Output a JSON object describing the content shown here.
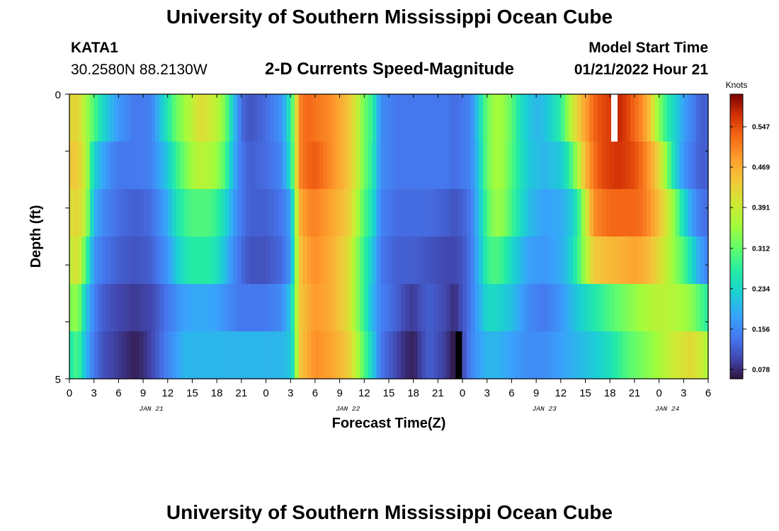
{
  "page": {
    "title": "University of Southern Mississippi Ocean Cube",
    "station": "KATA1",
    "coords": "30.2580N  88.2130W",
    "subtitle": "2-D Currents Speed-Magnitude",
    "start_label": "Model Start Time",
    "start_value": "01/21/2022 Hour 21",
    "bottom_title": "University of Southern Mississippi Ocean Cube"
  },
  "chart_data": {
    "type": "heatmap",
    "title": "2-D Currents Speed-Magnitude",
    "xlabel": "Forecast Time(Z)",
    "ylabel": "Depth (ft)",
    "x_tick_labels": [
      "0",
      "3",
      "6",
      "9",
      "12",
      "15",
      "18",
      "21",
      "0",
      "3",
      "6",
      "9",
      "12",
      "15",
      "18",
      "21",
      "0",
      "3",
      "6",
      "9",
      "12",
      "15",
      "18",
      "21",
      "0",
      "3",
      "6"
    ],
    "date_labels": [
      {
        "label": "JAN 21",
        "hour": 10
      },
      {
        "label": "JAN 22",
        "hour": 34
      },
      {
        "label": "JAN 23",
        "hour": 58
      },
      {
        "label": "JAN 24",
        "hour": 73
      }
    ],
    "xlim_hours": [
      0,
      78
    ],
    "y_tick_labels": [
      "0",
      "5"
    ],
    "ylim_ft": [
      0,
      5
    ],
    "depth_levels": 6,
    "colorbar": {
      "title": "Knots",
      "ticks": [
        "0.547",
        "0.469",
        "0.391",
        "0.312",
        "0.234",
        "0.156",
        "0.078"
      ],
      "tick_values": [
        0.547,
        0.469,
        0.391,
        0.312,
        0.234,
        0.156,
        0.078
      ],
      "range": [
        0.06,
        0.61
      ]
    },
    "missing_marks": [
      {
        "hour": 66.5,
        "depth_index": 0,
        "kind": "no-data"
      },
      {
        "hour": 47.5,
        "depth_index": 5,
        "kind": "below-scale"
      }
    ],
    "profiles": [
      {
        "name": "depth-0",
        "hours": [
          0,
          1,
          2,
          3,
          4,
          6,
          8,
          10,
          12,
          13,
          15,
          16,
          17,
          18,
          19,
          20,
          21,
          22,
          24,
          25,
          26,
          27,
          27.5,
          28,
          29,
          30,
          32,
          34,
          35,
          36,
          37,
          38,
          40,
          42,
          44,
          46,
          47,
          48,
          49,
          50,
          51,
          52,
          53,
          54,
          55,
          56,
          57,
          58,
          60,
          61,
          62,
          63,
          64,
          65,
          66,
          67,
          68,
          69,
          70,
          71,
          71.5,
          72,
          73,
          74,
          75,
          76,
          77,
          78
        ],
        "values": [
          0.42,
          0.43,
          0.36,
          0.3,
          0.24,
          0.17,
          0.14,
          0.15,
          0.26,
          0.32,
          0.38,
          0.42,
          0.4,
          0.38,
          0.33,
          0.22,
          0.13,
          0.11,
          0.13,
          0.15,
          0.17,
          0.27,
          0.35,
          0.5,
          0.53,
          0.52,
          0.5,
          0.45,
          0.4,
          0.32,
          0.28,
          0.16,
          0.14,
          0.14,
          0.14,
          0.14,
          0.13,
          0.14,
          0.15,
          0.23,
          0.32,
          0.36,
          0.35,
          0.31,
          0.25,
          0.22,
          0.2,
          0.21,
          0.27,
          0.36,
          0.43,
          0.48,
          0.53,
          0.55,
          0.56,
          0.58,
          0.56,
          0.53,
          0.5,
          0.44,
          0.38,
          0.34,
          0.27,
          0.23,
          0.18,
          0.15,
          0.12,
          0.12
        ]
      },
      {
        "name": "depth-1",
        "hours": [
          0,
          1,
          2,
          3,
          4,
          5,
          6,
          8,
          10,
          12,
          13,
          15,
          16,
          17,
          18,
          19,
          20,
          21,
          22,
          24,
          25,
          26,
          27,
          27.5,
          28,
          29,
          30,
          32,
          34,
          35,
          36,
          37,
          38,
          40,
          42,
          44,
          46,
          47,
          48,
          49,
          50,
          51,
          52,
          53,
          54,
          56,
          58,
          60,
          61,
          62,
          63,
          64,
          65,
          66,
          67,
          68,
          69,
          70,
          71,
          72,
          73,
          74,
          75,
          76,
          77,
          78
        ],
        "values": [
          0.44,
          0.44,
          0.38,
          0.23,
          0.19,
          0.16,
          0.14,
          0.14,
          0.15,
          0.22,
          0.28,
          0.36,
          0.38,
          0.37,
          0.35,
          0.3,
          0.2,
          0.14,
          0.12,
          0.13,
          0.14,
          0.16,
          0.25,
          0.35,
          0.5,
          0.53,
          0.54,
          0.5,
          0.45,
          0.4,
          0.32,
          0.27,
          0.16,
          0.14,
          0.14,
          0.14,
          0.14,
          0.13,
          0.14,
          0.15,
          0.22,
          0.32,
          0.36,
          0.35,
          0.3,
          0.22,
          0.2,
          0.22,
          0.27,
          0.36,
          0.46,
          0.52,
          0.55,
          0.56,
          0.57,
          0.56,
          0.55,
          0.52,
          0.48,
          0.42,
          0.33,
          0.23,
          0.17,
          0.14,
          0.12,
          0.12
        ]
      },
      {
        "name": "depth-2",
        "hours": [
          0,
          1,
          2,
          3,
          4,
          6,
          8,
          10,
          12,
          13,
          14,
          15,
          17,
          18,
          19,
          20,
          21,
          22,
          24,
          25,
          26,
          27,
          27.5,
          28,
          29,
          30,
          32,
          34,
          35,
          36,
          37,
          38,
          40,
          42,
          44,
          46,
          47,
          48,
          49,
          50,
          51,
          52,
          53,
          54,
          56,
          58,
          60,
          61,
          62,
          63,
          64,
          66,
          68,
          69,
          70,
          71,
          72,
          73,
          74,
          75,
          76,
          77,
          78
        ],
        "values": [
          0.41,
          0.43,
          0.37,
          0.2,
          0.16,
          0.13,
          0.12,
          0.13,
          0.19,
          0.25,
          0.28,
          0.3,
          0.3,
          0.28,
          0.24,
          0.18,
          0.14,
          0.12,
          0.12,
          0.13,
          0.14,
          0.18,
          0.3,
          0.46,
          0.5,
          0.51,
          0.48,
          0.44,
          0.38,
          0.3,
          0.25,
          0.15,
          0.13,
          0.13,
          0.13,
          0.12,
          0.11,
          0.12,
          0.14,
          0.21,
          0.3,
          0.35,
          0.34,
          0.29,
          0.21,
          0.18,
          0.19,
          0.21,
          0.26,
          0.38,
          0.5,
          0.53,
          0.53,
          0.53,
          0.52,
          0.49,
          0.45,
          0.4,
          0.33,
          0.24,
          0.18,
          0.14,
          0.13
        ]
      },
      {
        "name": "depth-3",
        "hours": [
          0,
          1,
          2,
          3,
          4,
          6,
          8,
          10,
          12,
          13,
          14,
          15,
          17,
          18,
          19,
          20,
          21,
          22,
          24,
          25,
          26,
          27,
          27.5,
          28,
          29,
          30,
          32,
          34,
          35,
          36,
          37,
          38,
          40,
          42,
          44,
          46,
          47,
          48,
          49,
          50,
          51,
          52,
          53,
          54,
          56,
          58,
          60,
          61,
          62,
          63,
          64,
          66,
          68,
          69,
          70,
          71,
          72,
          73,
          74,
          75,
          76,
          77,
          78
        ],
        "values": [
          0.38,
          0.42,
          0.3,
          0.17,
          0.14,
          0.12,
          0.11,
          0.12,
          0.17,
          0.22,
          0.25,
          0.27,
          0.27,
          0.25,
          0.21,
          0.16,
          0.13,
          0.11,
          0.11,
          0.12,
          0.13,
          0.17,
          0.28,
          0.44,
          0.48,
          0.5,
          0.47,
          0.42,
          0.35,
          0.28,
          0.22,
          0.14,
          0.12,
          0.12,
          0.11,
          0.1,
          0.1,
          0.11,
          0.14,
          0.2,
          0.28,
          0.3,
          0.28,
          0.24,
          0.18,
          0.17,
          0.19,
          0.22,
          0.28,
          0.36,
          0.44,
          0.46,
          0.47,
          0.48,
          0.47,
          0.45,
          0.42,
          0.38,
          0.34,
          0.3,
          0.24,
          0.18,
          0.15
        ]
      },
      {
        "name": "depth-4",
        "hours": [
          0,
          1,
          2,
          3,
          4,
          6,
          8,
          10,
          12,
          14,
          16,
          18,
          20,
          21,
          22,
          24,
          26,
          27,
          27.5,
          28,
          30,
          32,
          34,
          35,
          36,
          37,
          38,
          40,
          41,
          42,
          43,
          44,
          46,
          47,
          48,
          49,
          50,
          51,
          52,
          54,
          56,
          58,
          60,
          62,
          64,
          66,
          68,
          70,
          72,
          74,
          76,
          77,
          78
        ],
        "values": [
          0.33,
          0.35,
          0.22,
          0.15,
          0.12,
          0.1,
          0.09,
          0.1,
          0.14,
          0.18,
          0.19,
          0.18,
          0.15,
          0.14,
          0.14,
          0.14,
          0.16,
          0.22,
          0.3,
          0.44,
          0.49,
          0.47,
          0.42,
          0.35,
          0.28,
          0.2,
          0.15,
          0.12,
          0.1,
          0.09,
          0.11,
          0.12,
          0.1,
          0.08,
          0.11,
          0.14,
          0.19,
          0.24,
          0.24,
          0.21,
          0.16,
          0.14,
          0.17,
          0.22,
          0.26,
          0.3,
          0.33,
          0.36,
          0.38,
          0.37,
          0.34,
          0.3,
          0.27
        ]
      },
      {
        "name": "depth-5",
        "hours": [
          0,
          1,
          2,
          3,
          4,
          6,
          7,
          8,
          9,
          10,
          12,
          14,
          16,
          18,
          20,
          22,
          24,
          26,
          27,
          27.5,
          28,
          30,
          32,
          34,
          35,
          36,
          37,
          38,
          40,
          41,
          42,
          43,
          44,
          46,
          47,
          48,
          49,
          50,
          51,
          52,
          54,
          56,
          58,
          60,
          62,
          64,
          66,
          68,
          70,
          72,
          74,
          76,
          77,
          78
        ],
        "values": [
          0.26,
          0.3,
          0.2,
          0.14,
          0.11,
          0.09,
          0.08,
          0.07,
          0.08,
          0.1,
          0.15,
          0.2,
          0.2,
          0.2,
          0.2,
          0.2,
          0.2,
          0.2,
          0.22,
          0.28,
          0.44,
          0.5,
          0.48,
          0.44,
          0.38,
          0.3,
          0.23,
          0.14,
          0.1,
          0.08,
          0.07,
          0.1,
          0.12,
          0.09,
          0.06,
          0.1,
          0.15,
          0.18,
          0.2,
          0.2,
          0.18,
          0.16,
          0.16,
          0.18,
          0.2,
          0.22,
          0.25,
          0.3,
          0.33,
          0.36,
          0.4,
          0.42,
          0.4,
          0.36
        ]
      }
    ]
  }
}
